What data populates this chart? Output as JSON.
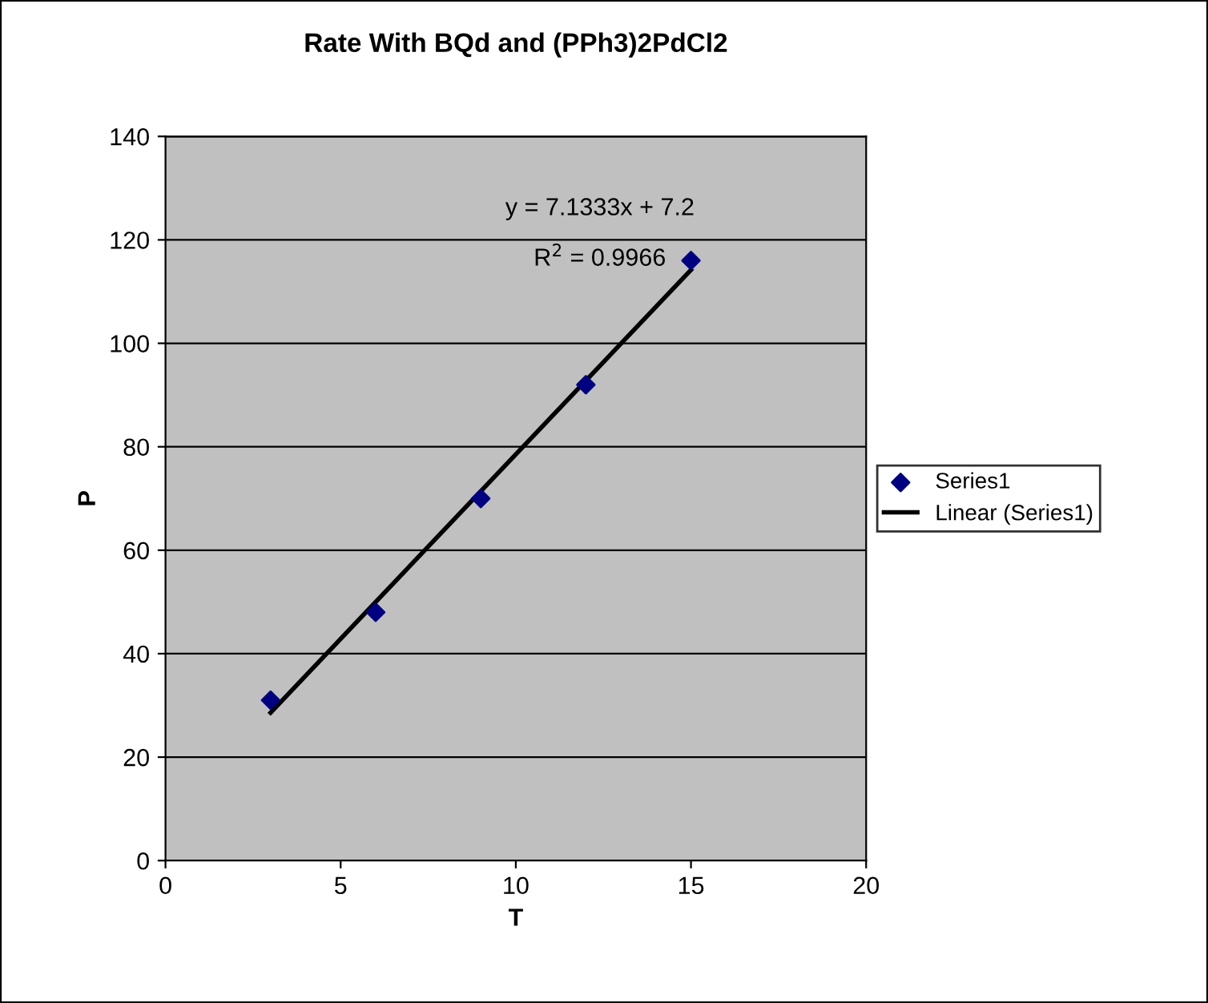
{
  "chart_data": {
    "type": "scatter",
    "title": "Rate With BQd and (PPh3)2PdCl2",
    "xlabel": "T",
    "ylabel": "P",
    "xlim": [
      0,
      20
    ],
    "xticks": [
      0,
      5,
      10,
      15,
      20
    ],
    "ylim": [
      0,
      140
    ],
    "yticks": [
      0,
      20,
      40,
      60,
      80,
      100,
      120,
      140
    ],
    "grid": "y",
    "legend": "right",
    "annotations": [
      "y = 7.1333x + 7.2",
      "R$^{2}$ = 0.9966"
    ],
    "series": [
      {
        "name": "Series1",
        "marker": "diamond",
        "color": "#000080",
        "x": [
          3,
          6,
          9,
          12,
          15
        ],
        "values": [
          31,
          48,
          70,
          92,
          116
        ]
      },
      {
        "name": "Linear (Series1)",
        "type": "line",
        "color": "#000000",
        "x": [
          3,
          15
        ],
        "values": [
          28.6,
          114.2
        ],
        "line_style": "solid"
      }
    ]
  }
}
